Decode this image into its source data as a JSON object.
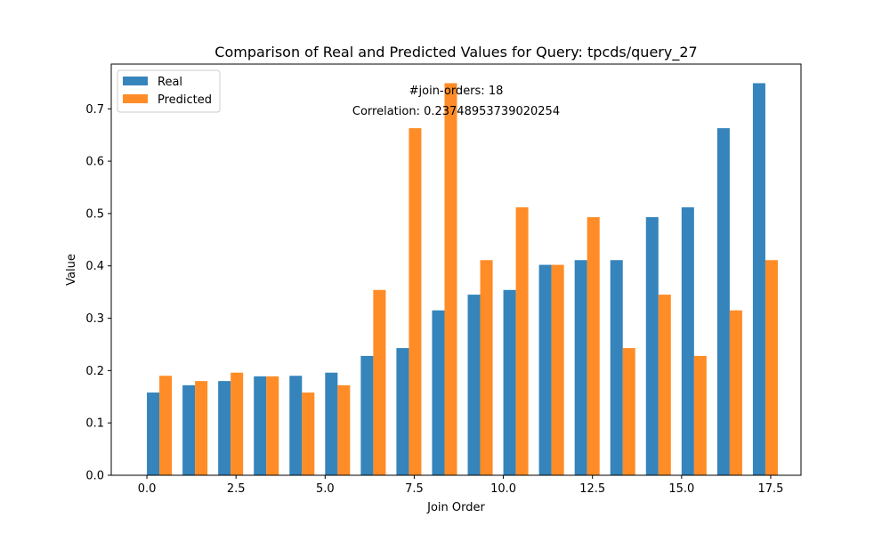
{
  "chart_data": {
    "type": "bar",
    "title": "Comparison of Real and Predicted Values for Query: tpcds/query_27",
    "xlabel": "Join Order",
    "ylabel": "Value",
    "x": [
      0,
      1,
      2,
      3,
      4,
      5,
      6,
      7,
      8,
      9,
      10,
      11,
      12,
      13,
      14,
      15,
      16,
      17
    ],
    "xlim": [
      -1.0,
      18.35
    ],
    "ylim": [
      0,
      0.75
    ],
    "xticks": [
      0.0,
      2.5,
      5.0,
      7.5,
      10.0,
      12.5,
      15.0,
      17.5
    ],
    "xtick_labels": [
      "0.0",
      "2.5",
      "5.0",
      "7.5",
      "10.0",
      "12.5",
      "15.0",
      "17.5"
    ],
    "yticks": [
      0.0,
      0.1,
      0.2,
      0.3,
      0.4,
      0.5,
      0.6,
      0.7
    ],
    "ytick_labels": [
      "0.0",
      "0.1",
      "0.2",
      "0.3",
      "0.4",
      "0.5",
      "0.6",
      "0.7"
    ],
    "series": [
      {
        "name": "Real",
        "color": "#1f77b4",
        "values": [
          0.158,
          0.172,
          0.18,
          0.189,
          0.19,
          0.196,
          0.228,
          0.243,
          0.315,
          0.345,
          0.354,
          0.402,
          0.411,
          0.411,
          0.493,
          0.512,
          0.663,
          0.749
        ]
      },
      {
        "name": "Predicted",
        "color": "#ff7f0e",
        "values": [
          0.19,
          0.18,
          0.196,
          0.189,
          0.158,
          0.172,
          0.354,
          0.663,
          0.749,
          0.411,
          0.512,
          0.402,
          0.493,
          0.243,
          0.345,
          0.228,
          0.315,
          0.411
        ]
      }
    ],
    "annotations": [
      "#join-orders: 18",
      "Correlation: 0.23748953739020254"
    ],
    "legend_position": "top-left",
    "grid": false
  }
}
